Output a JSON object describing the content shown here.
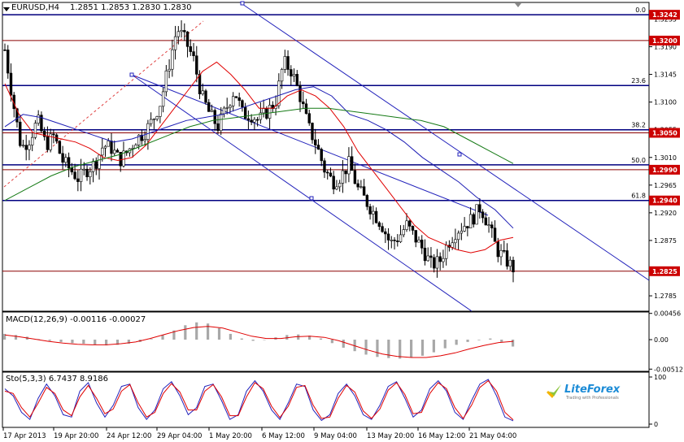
{
  "header": {
    "symbol": "EURUSD,H4",
    "ohlc": "1.2851 1.2853 1.2830 1.2830",
    "macd": "MACD(12,26,9) -0.00116 -0.00027",
    "stoch": "Sto(5,3,3) 6.7437 8.9186"
  },
  "logo": {
    "name": "LiteForex",
    "tagline": "Trading with Professionals"
  },
  "colors": {
    "frame": "#000000",
    "up_candle": "#000000",
    "ma_red": "#e00000",
    "ma_blue": "#1c1cb4",
    "ma_green": "#157a15",
    "h_line_red": "#8a0000",
    "fib_line": "#000080",
    "channel": "#2222bb",
    "macd_hist": "#a8a8a8",
    "price_tag_red": "#cc0000"
  },
  "chart_data": [
    {
      "type": "candlestick",
      "title": "EURUSD,H4",
      "ylim": [
        1.276,
        1.3262
      ],
      "price_labels": [
        "1.3235",
        "1.3190",
        "1.3145",
        "1.3100",
        "1.3055",
        "1.3010",
        "1.2965",
        "1.2920",
        "1.2875",
        "1.2785"
      ],
      "highlighted_levels": [
        "1.3242",
        "1.3200",
        "1.3050",
        "1.2990",
        "1.2940",
        "1.2825"
      ],
      "fibonacci": [
        {
          "label": "0.0",
          "price": 1.3242
        },
        {
          "label": "23.6",
          "price": 1.3127
        },
        {
          "label": "38.2",
          "price": 1.3055
        },
        {
          "label": "50.0",
          "price": 1.2998
        },
        {
          "label": "61.8",
          "price": 1.294
        }
      ],
      "x_labels": [
        "17 Apr 2013",
        "19 Apr 20:00",
        "24 Apr 12:00",
        "29 Apr 04:00",
        "1 May 20:00",
        "6 May 12:00",
        "9 May 04:00",
        "13 May 20:00",
        "16 May 12:00",
        "21 May 04:00"
      ],
      "close_path": [
        1.3185,
        1.31,
        1.3025,
        1.304,
        1.307,
        1.303,
        1.3045,
        1.3005,
        1.299,
        1.2975,
        1.299,
        1.3,
        1.303,
        1.3025,
        1.3005,
        1.302,
        1.304,
        1.305,
        1.307,
        1.31,
        1.316,
        1.322,
        1.32,
        1.317,
        1.311,
        1.308,
        1.306,
        1.309,
        1.312,
        1.308,
        1.308,
        1.307,
        1.3085,
        1.31,
        1.3165,
        1.315,
        1.311,
        1.306,
        1.303,
        1.299,
        1.297,
        1.298,
        1.3,
        1.296,
        1.294,
        1.292,
        1.29,
        1.287,
        1.288,
        1.29,
        1.288,
        1.286,
        1.2835,
        1.284,
        1.287,
        1.289,
        1.29,
        1.291,
        1.293,
        1.29,
        1.286,
        1.2845,
        1.283
      ],
      "series": [
        {
          "name": "MA fast",
          "values": [
            1.313,
            1.308,
            1.305,
            1.3045,
            1.304,
            1.3035,
            1.3025,
            1.301,
            1.3005,
            1.301,
            1.303,
            1.306,
            1.309,
            1.312,
            1.315,
            1.3165,
            1.3145,
            1.312,
            1.309,
            1.309,
            1.311,
            1.312,
            1.311,
            1.309,
            1.306,
            1.302,
            1.299,
            1.296,
            1.293,
            1.29,
            1.288,
            1.287,
            1.286,
            1.2855,
            1.286,
            1.2875,
            1.288
          ]
        },
        {
          "name": "MA mid",
          "values": [
            1.306,
            1.308,
            1.3075,
            1.3065,
            1.3055,
            1.3045,
            1.3035,
            1.304,
            1.305,
            1.306,
            1.307,
            1.3075,
            1.308,
            1.309,
            1.31,
            1.311,
            1.312,
            1.3125,
            1.311,
            1.308,
            1.307,
            1.3055,
            1.3035,
            1.301,
            1.299,
            1.297,
            1.2945,
            1.2925,
            1.2895
          ]
        },
        {
          "name": "MA slow",
          "values": [
            1.294,
            1.296,
            1.298,
            1.2995,
            1.3005,
            1.3015,
            1.303,
            1.3045,
            1.306,
            1.307,
            1.3075,
            1.308,
            1.3085,
            1.309,
            1.309,
            1.3085,
            1.308,
            1.3075,
            1.307,
            1.306,
            1.304,
            1.302,
            1.3
          ]
        }
      ]
    },
    {
      "type": "bar",
      "title": "MACD(12,26,9) -0.00116 -0.00027",
      "price_labels": [
        "0.00456",
        "0.00",
        "-0.00512"
      ],
      "ylim": [
        -0.0055,
        0.0048
      ],
      "histogram": [
        0.001,
        0.0008,
        0.0005,
        0.0001,
        -0.0002,
        -0.0004,
        -0.0006,
        -0.0007,
        -0.0009,
        -0.001,
        -0.0009,
        -0.0007,
        -0.0004,
        0.0001,
        0.0008,
        0.0016,
        0.0025,
        0.003,
        0.0028,
        0.002,
        0.001,
        0.0002,
        -0.0002,
        0.0,
        0.0004,
        0.0008,
        0.0009,
        0.0007,
        0.0002,
        -0.0006,
        -0.0014,
        -0.002,
        -0.0026,
        -0.003,
        -0.0032,
        -0.0033,
        -0.0031,
        -0.0028,
        -0.0022,
        -0.0015,
        -0.0009,
        -0.0004,
        -0.0001,
        0.0002,
        -0.0004,
        -0.0012
      ],
      "signal": [
        0.0008,
        0.0005,
        0.0001,
        -0.0003,
        -0.0006,
        -0.0008,
        -0.0009,
        -0.0009,
        -0.0007,
        -0.0004,
        0.0002,
        0.0009,
        0.0016,
        0.0021,
        0.0023,
        0.002,
        0.0013,
        0.0006,
        0.0002,
        0.0002,
        0.0005,
        0.0006,
        0.0004,
        -0.0002,
        -0.001,
        -0.0018,
        -0.0025,
        -0.0029,
        -0.0031,
        -0.0031,
        -0.0028,
        -0.0023,
        -0.0016,
        -0.001,
        -0.0005,
        -0.0003
      ]
    },
    {
      "type": "line",
      "title": "Sto(5,3,3) 6.7437 8.9186",
      "price_labels": [
        "100",
        "0"
      ],
      "ylim": [
        0,
        100
      ],
      "series": [
        {
          "name": "main",
          "values": [
            75,
            60,
            25,
            10,
            55,
            85,
            60,
            20,
            15,
            70,
            88,
            45,
            15,
            40,
            80,
            85,
            35,
            10,
            30,
            75,
            90,
            60,
            20,
            35,
            80,
            85,
            50,
            10,
            20,
            70,
            92,
            70,
            30,
            10,
            45,
            85,
            80,
            30,
            8,
            20,
            65,
            85,
            60,
            20,
            10,
            40,
            80,
            90,
            55,
            15,
            30,
            75,
            92,
            70,
            25,
            10,
            50,
            85,
            95,
            60,
            15,
            7
          ]
        },
        {
          "name": "signal",
          "values": [
            70,
            65,
            35,
            15,
            45,
            78,
            65,
            30,
            18,
            58,
            82,
            55,
            22,
            32,
            70,
            84,
            45,
            15,
            25,
            65,
            86,
            68,
            30,
            30,
            70,
            84,
            58,
            18,
            18,
            58,
            88,
            75,
            38,
            14,
            38,
            78,
            82,
            40,
            12,
            15,
            55,
            82,
            68,
            28,
            12,
            32,
            72,
            88,
            63,
            22,
            25,
            65,
            88,
            75,
            35,
            12,
            40,
            78,
            92,
            70,
            25,
            9
          ]
        }
      ]
    }
  ]
}
